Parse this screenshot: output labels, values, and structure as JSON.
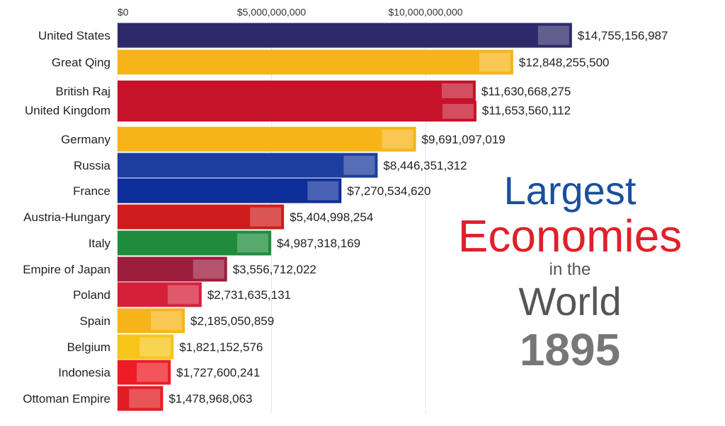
{
  "chart_data": {
    "type": "bar",
    "orientation": "horizontal",
    "axis_ticks": [
      "$0",
      "$5,000,000,000",
      "$10,000,000,000"
    ],
    "xlim": [
      0,
      15000000000
    ],
    "categories": [
      "United States",
      "Great Qing",
      "British Raj",
      "United Kingdom",
      "Germany",
      "Russia",
      "France",
      "Austria-Hungary",
      "Italy",
      "Empire of Japan",
      "Poland",
      "Spain",
      "Belgium",
      "Indonesia",
      "Ottoman Empire"
    ],
    "values": [
      14755156987,
      12848255500,
      11630668275,
      11653560112,
      9691097019,
      8446351312,
      7270534620,
      5404998254,
      4987318169,
      3556712022,
      2731635131,
      2185050859,
      1821152576,
      1727600241,
      1478968063
    ],
    "value_labels": [
      "$14,755,156,987",
      "$12,848,255,500",
      "$11,630,668,275",
      "$11,653,560,112",
      "$9,691,097,019",
      "$8,446,351,312",
      "$7,270,534,620",
      "$5,404,998,254",
      "$4,987,318,169",
      "$3,556,712,022",
      "$2,731,635,131",
      "$2,185,050,859",
      "$1,821,152,576",
      "$1,727,600,241",
      "$1,478,968,063"
    ],
    "colors": [
      "#2e2a6a",
      "#f7b418",
      "#c5142a",
      "#c5142a",
      "#f7b418",
      "#1c3e9e",
      "#0d2d99",
      "#cf1c1c",
      "#1f8c3c",
      "#9c1d3c",
      "#d6203a",
      "#f7b418",
      "#f7c518",
      "#ee1c25",
      "#e01d22"
    ],
    "grid": true,
    "legend": "none"
  },
  "title": {
    "line1": "Largest",
    "line2": "Economies",
    "line3": "in the",
    "line4": "World",
    "year": "1895"
  }
}
